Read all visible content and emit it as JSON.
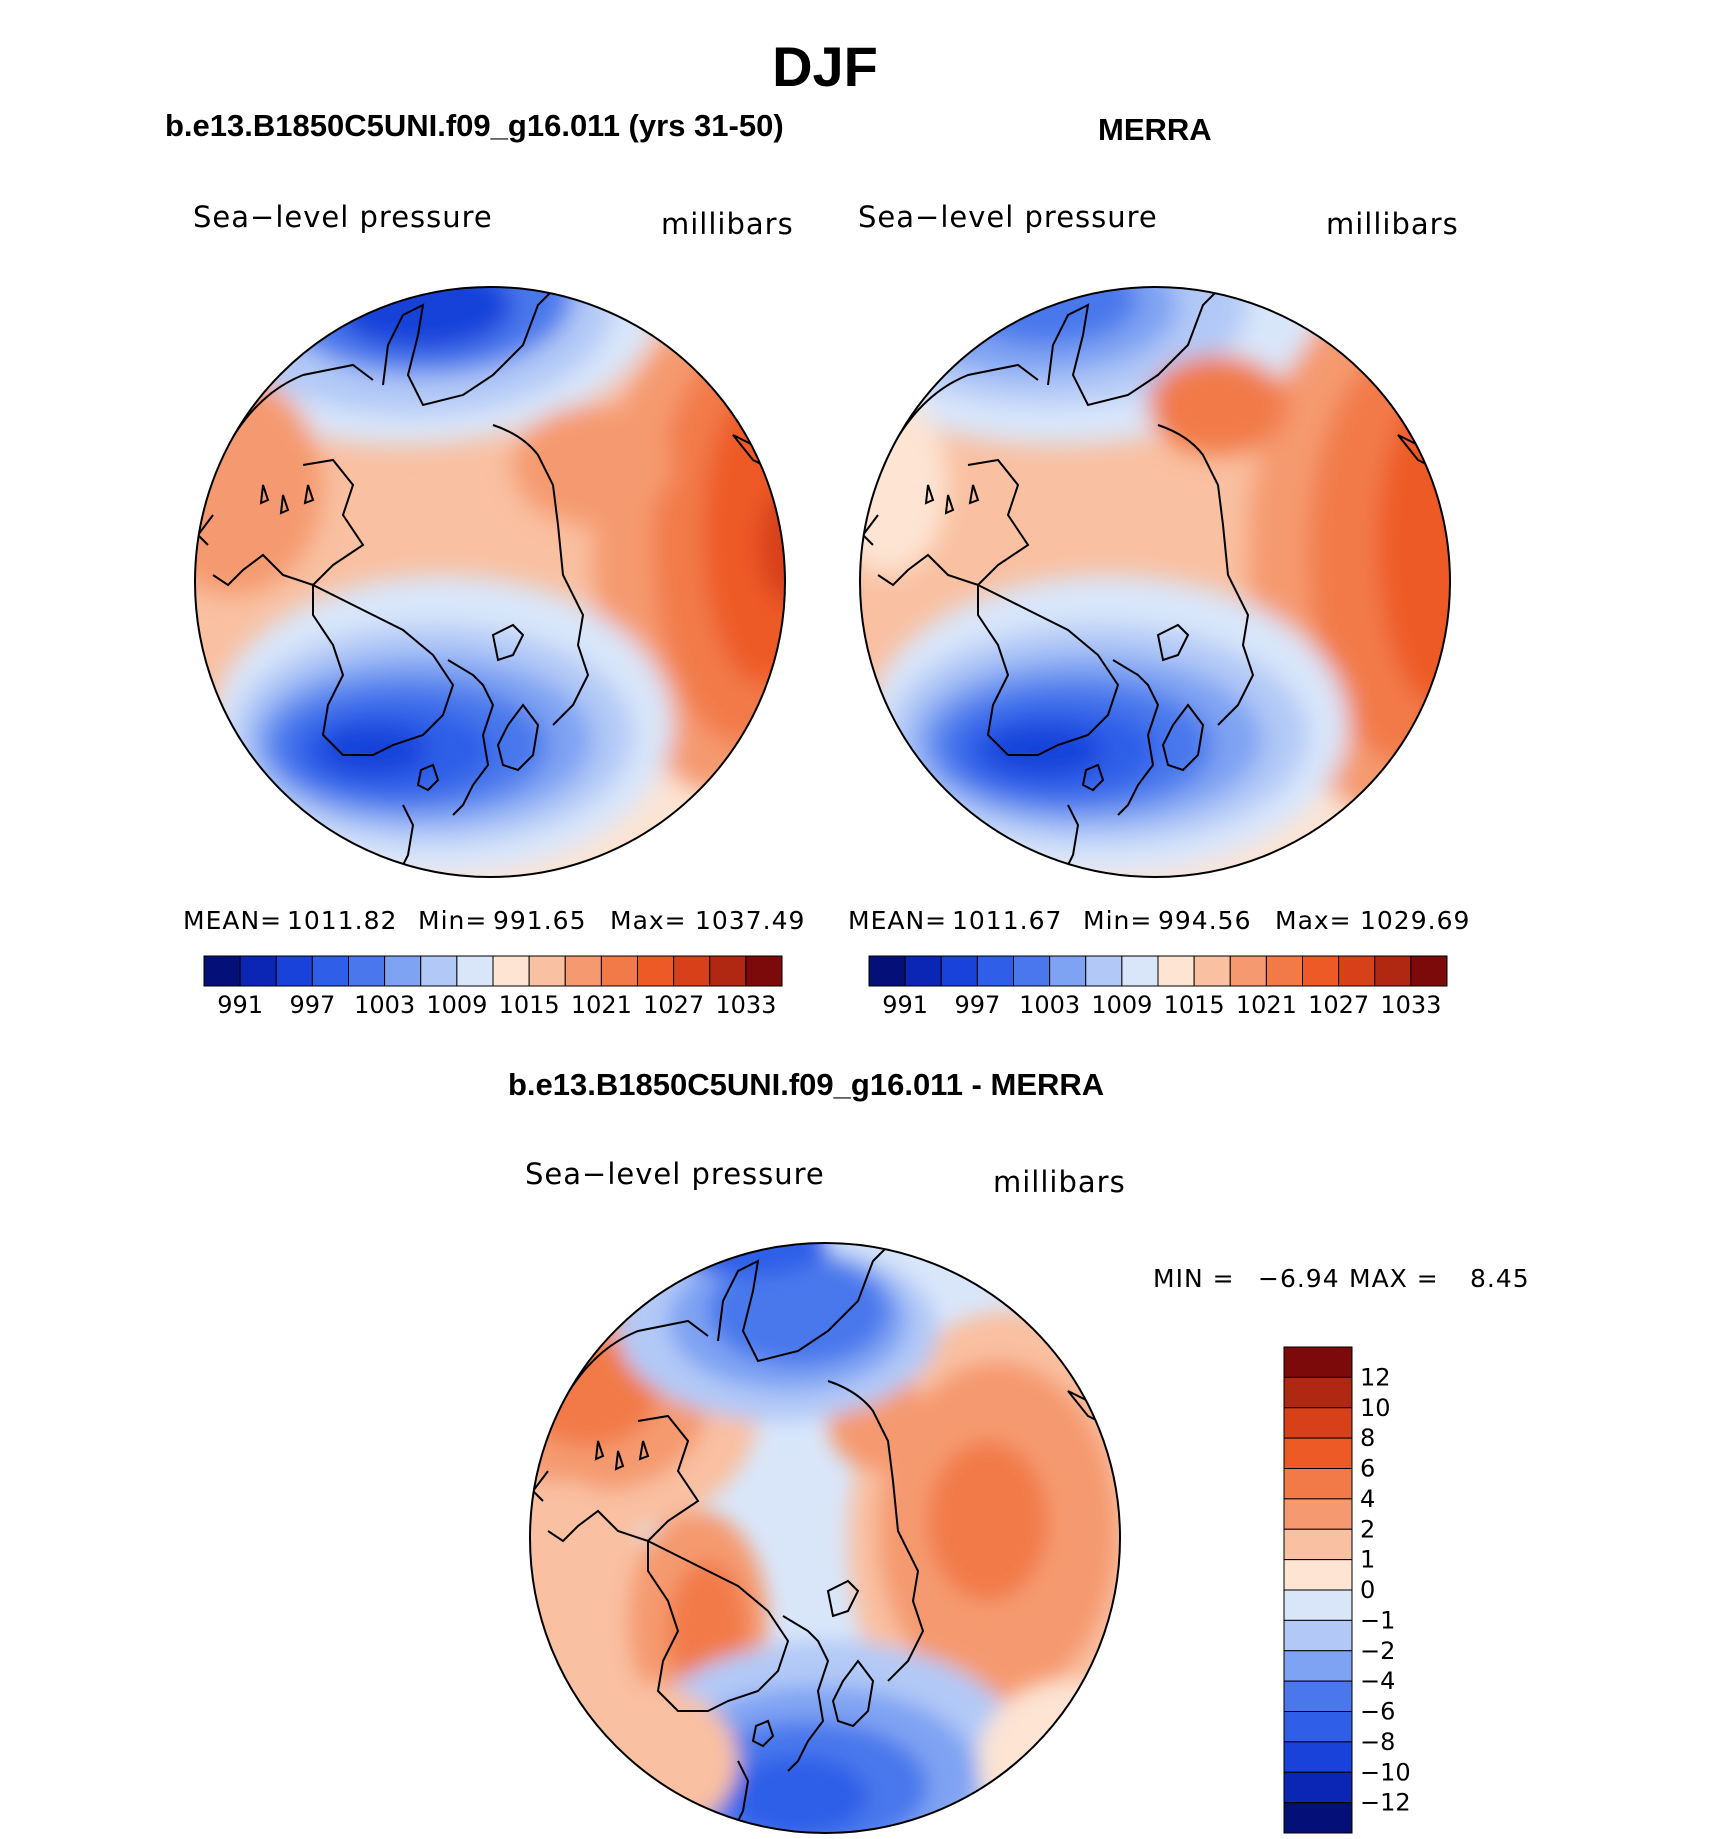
{
  "main_title": "DJF",
  "panels": [
    {
      "title": "b.e13.B1850C5UNI.f09_g16.011 (yrs 31-50)",
      "variable": "Sea−level pressure",
      "units": "millibars",
      "stats": {
        "mean_label": "MEAN=",
        "mean": "1011.82",
        "min_label": "Min=",
        "min": "991.65",
        "max_label": "Max=",
        "max": "1037.49"
      }
    },
    {
      "title": "MERRA",
      "variable": "Sea−level pressure",
      "units": "millibars",
      "stats": {
        "mean_label": "MEAN=",
        "mean": "1011.67",
        "min_label": "Min=",
        "min": "994.56",
        "max_label": "Max=",
        "max": "1029.69"
      }
    },
    {
      "title": "b.e13.B1850C5UNI.f09_g16.011 - MERRA",
      "variable": "Sea−level pressure",
      "units": "millibars",
      "stats": {
        "min_label": "MIN =",
        "min": "−6.94",
        "max_label": "MAX =",
        "max": "8.45"
      }
    }
  ],
  "colorbar_abs": {
    "labels": [
      "991",
      "997",
      "1003",
      "1009",
      "1015",
      "1021",
      "1027",
      "1033"
    ],
    "colors": [
      "#050f78",
      "#0b25b4",
      "#1942da",
      "#2f5ee8",
      "#4a78ec",
      "#7fa3f3",
      "#b2c9f7",
      "#d9e6fa",
      "#fde4d3",
      "#f9c0a1",
      "#f59a70",
      "#f27a48",
      "#ee5a26",
      "#d8401a",
      "#b02812",
      "#7d0a0a"
    ]
  },
  "colorbar_diff": {
    "labels": [
      "12",
      "10",
      "8",
      "6",
      "4",
      "2",
      "1",
      "0",
      "−1",
      "−2",
      "−4",
      "−6",
      "−8",
      "−10",
      "−12"
    ],
    "colors": [
      "#7d0a0a",
      "#b02812",
      "#d8401a",
      "#ee5a26",
      "#f27a48",
      "#f59a70",
      "#f9c0a1",
      "#fde4d3",
      "#d9e6fa",
      "#b2c9f7",
      "#7fa3f3",
      "#4a78ec",
      "#2f5ee8",
      "#1942da",
      "#0b25b4",
      "#050f78"
    ]
  }
}
